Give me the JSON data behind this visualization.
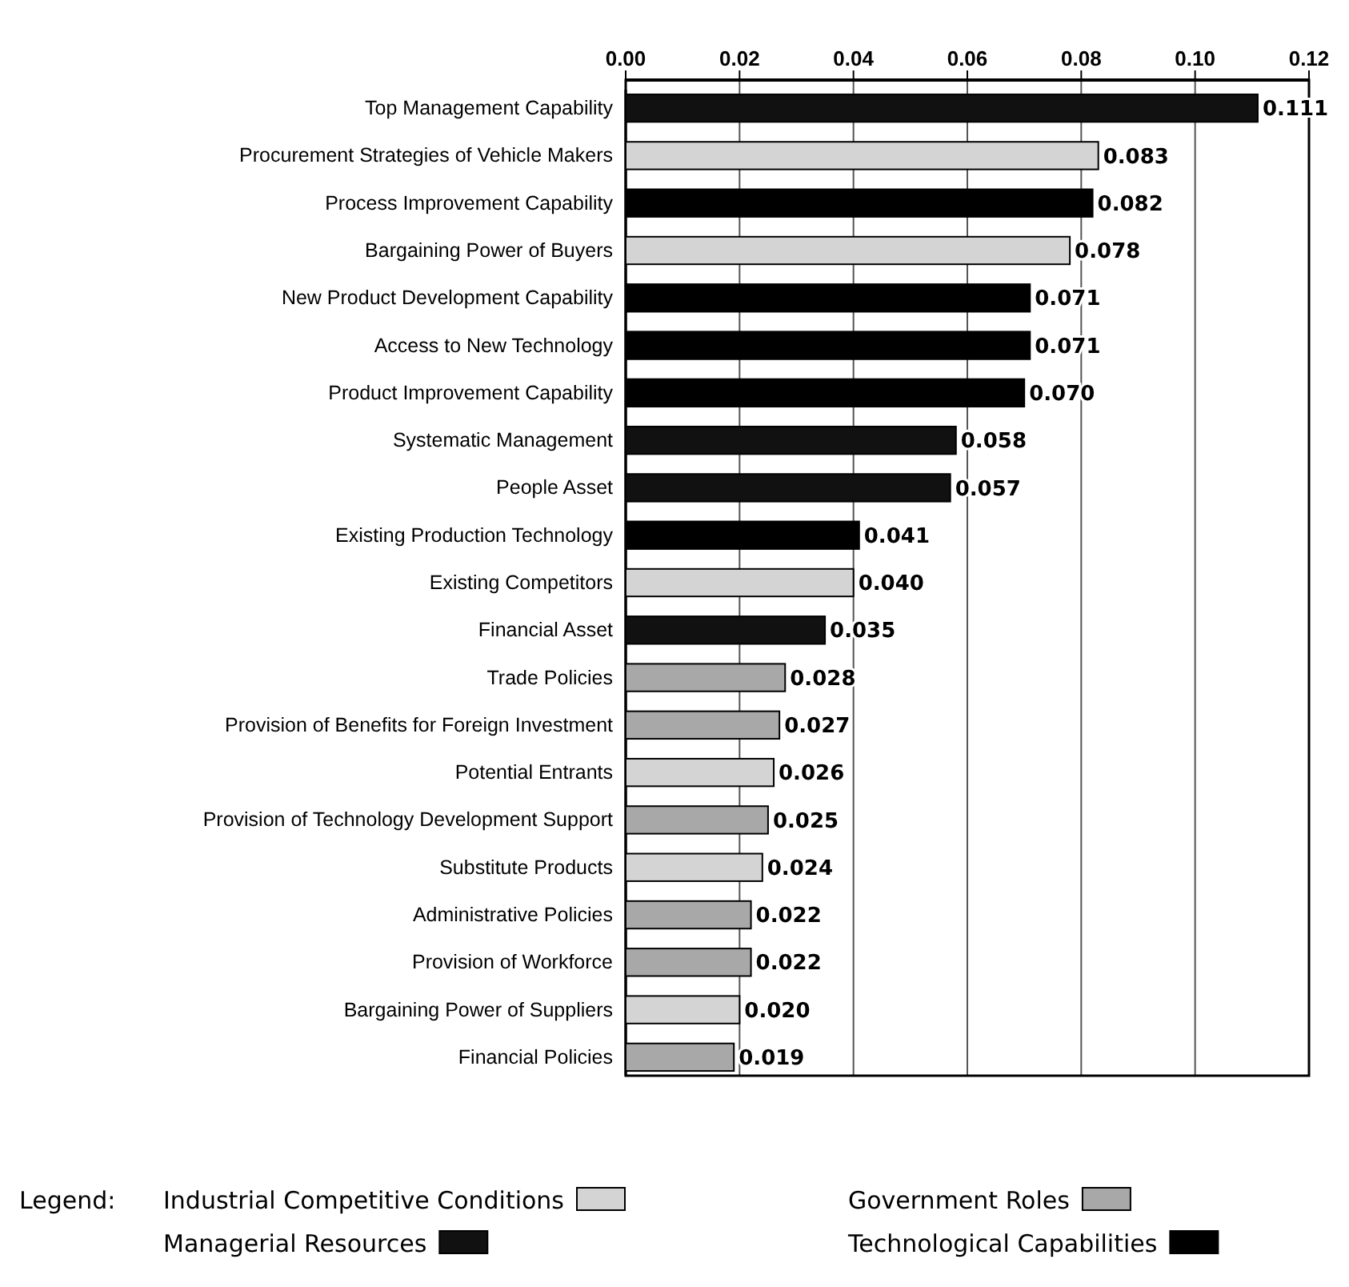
{
  "chart_data": {
    "type": "bar",
    "orientation": "horizontal",
    "categories": [
      "Top Management Capability",
      "Procurement Strategies of Vehicle Makers",
      "Process Improvement Capability",
      "Bargaining Power of Buyers",
      "New Product Development Capability",
      "Access to New Technology",
      "Product Improvement Capability",
      "Systematic Management",
      "People Asset",
      "Existing Production Technology",
      "Existing Competitors",
      "Financial Asset",
      "Trade Policies",
      "Provision of Benefits for Foreign Investment",
      "Potential Entrants",
      "Provision of Technology Development Support",
      "Substitute Products",
      "Administrative Policies",
      "Provision of Workforce",
      "Bargaining Power of Suppliers",
      "Financial Policies"
    ],
    "series": [
      {
        "name": "Industrial Competitive Conditions",
        "color": "#d4d4d4",
        "values": [
          null,
          0.083,
          null,
          0.078,
          null,
          null,
          null,
          null,
          null,
          null,
          0.04,
          null,
          null,
          null,
          0.026,
          null,
          0.024,
          null,
          null,
          0.02,
          null
        ],
        "value_labels": [
          null,
          "0.083",
          null,
          "0.078",
          null,
          null,
          null,
          null,
          null,
          null,
          "0.040",
          null,
          null,
          null,
          "0.026",
          null,
          "0.024",
          null,
          null,
          "0.020",
          null
        ]
      },
      {
        "name": "Managerial Resources",
        "color": "#111111",
        "values": [
          0.111,
          null,
          null,
          null,
          null,
          null,
          null,
          0.058,
          0.057,
          null,
          null,
          0.035,
          null,
          null,
          null,
          null,
          null,
          null,
          null,
          null,
          null
        ],
        "value_labels": [
          "0.111",
          null,
          null,
          null,
          null,
          null,
          null,
          "0.058",
          "0.057",
          null,
          null,
          "0.035",
          null,
          null,
          null,
          null,
          null,
          null,
          null,
          null,
          null
        ]
      },
      {
        "name": "Government Roles",
        "color": "#a8a8a8",
        "values": [
          null,
          null,
          null,
          null,
          null,
          null,
          null,
          null,
          null,
          null,
          null,
          null,
          0.028,
          0.027,
          null,
          0.025,
          null,
          0.022,
          0.022,
          null,
          0.019
        ],
        "value_labels": [
          null,
          null,
          null,
          null,
          null,
          null,
          null,
          null,
          null,
          null,
          null,
          null,
          "0.028",
          "0.027",
          null,
          "0.025",
          null,
          "0.022",
          "0.022",
          null,
          "0.019"
        ]
      },
      {
        "name": "Technological Capabilities",
        "color": "#000000",
        "values": [
          null,
          null,
          0.082,
          null,
          0.071,
          0.071,
          0.07,
          null,
          null,
          0.041,
          null,
          null,
          null,
          null,
          null,
          null,
          null,
          null,
          null,
          null,
          null
        ],
        "value_labels": [
          null,
          null,
          "0.082",
          null,
          "0.071",
          "0.071",
          "0.070",
          null,
          null,
          "0.041",
          null,
          null,
          null,
          null,
          null,
          null,
          null,
          null,
          null,
          null,
          null
        ]
      }
    ],
    "xlim": [
      0,
      0.12
    ],
    "xticks": [
      {
        "value": 0,
        "label": "0.00"
      },
      {
        "value": 0.02,
        "label": "0.02"
      },
      {
        "value": 0.04,
        "label": "0.04"
      },
      {
        "value": 0.06,
        "label": "0.06"
      },
      {
        "value": 0.08,
        "label": "0.08"
      },
      {
        "value": 0.1,
        "label": "0.10"
      },
      {
        "value": 0.12,
        "label": "0.12"
      }
    ],
    "grid": "x",
    "legend": "bottom",
    "legend_title": "Legend:"
  }
}
